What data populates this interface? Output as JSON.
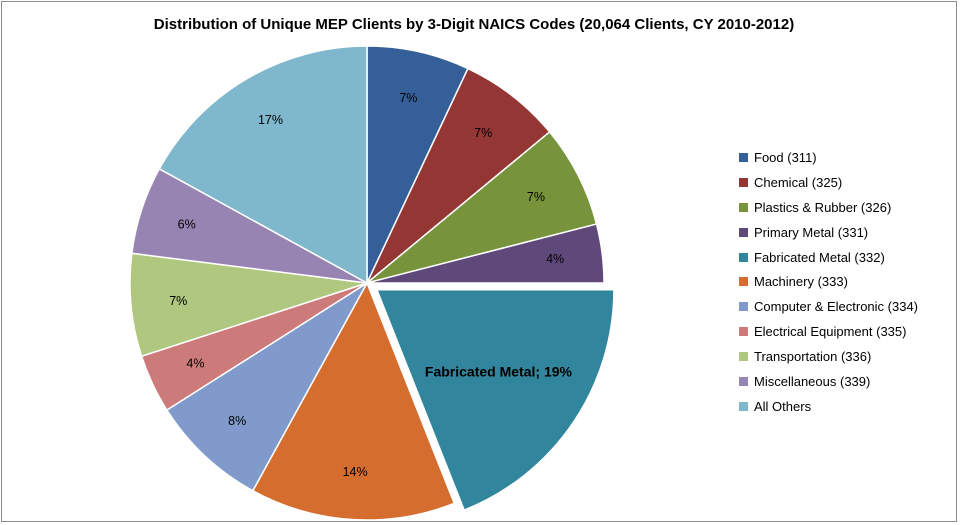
{
  "chart_data": {
    "type": "pie",
    "title": "Distribution of Unique MEP Clients by 3-Digit NAICS Codes  (20,064 Clients, CY 2010-2012)",
    "legend_position": "right",
    "slices": [
      {
        "name": "Food (311)",
        "value": 7,
        "label": "7%",
        "color": "#355F99"
      },
      {
        "name": "Chemical (325)",
        "value": 7,
        "label": "7%",
        "color": "#943634"
      },
      {
        "name": "Plastics & Rubber (326)",
        "value": 7,
        "label": "7%",
        "color": "#77933C"
      },
      {
        "name": "Primary Metal (331)",
        "value": 4,
        "label": "4%",
        "color": "#5F497A"
      },
      {
        "name": "Fabricated Metal (332)",
        "value": 19,
        "label": "Fabricated Metal; 19%",
        "color": "#31859C",
        "exploded": true
      },
      {
        "name": "Machinery (333)",
        "value": 14,
        "label": "14%",
        "color": "#D46D2E"
      },
      {
        "name": "Computer & Electronic (334)",
        "value": 8,
        "label": "8%",
        "color": "#7F9ACB"
      },
      {
        "name": "Electrical Equipment (335)",
        "value": 4,
        "label": "4%",
        "color": "#CD7B7A"
      },
      {
        "name": "Transportation (336)",
        "value": 7,
        "label": "7%",
        "color": "#AFC77E"
      },
      {
        "name": "Miscellaneous (339)",
        "value": 6,
        "label": "6%",
        "color": "#9884B3"
      },
      {
        "name": "All Others",
        "value": 17,
        "label": "17%",
        "color": "#7FB7CC"
      }
    ]
  }
}
